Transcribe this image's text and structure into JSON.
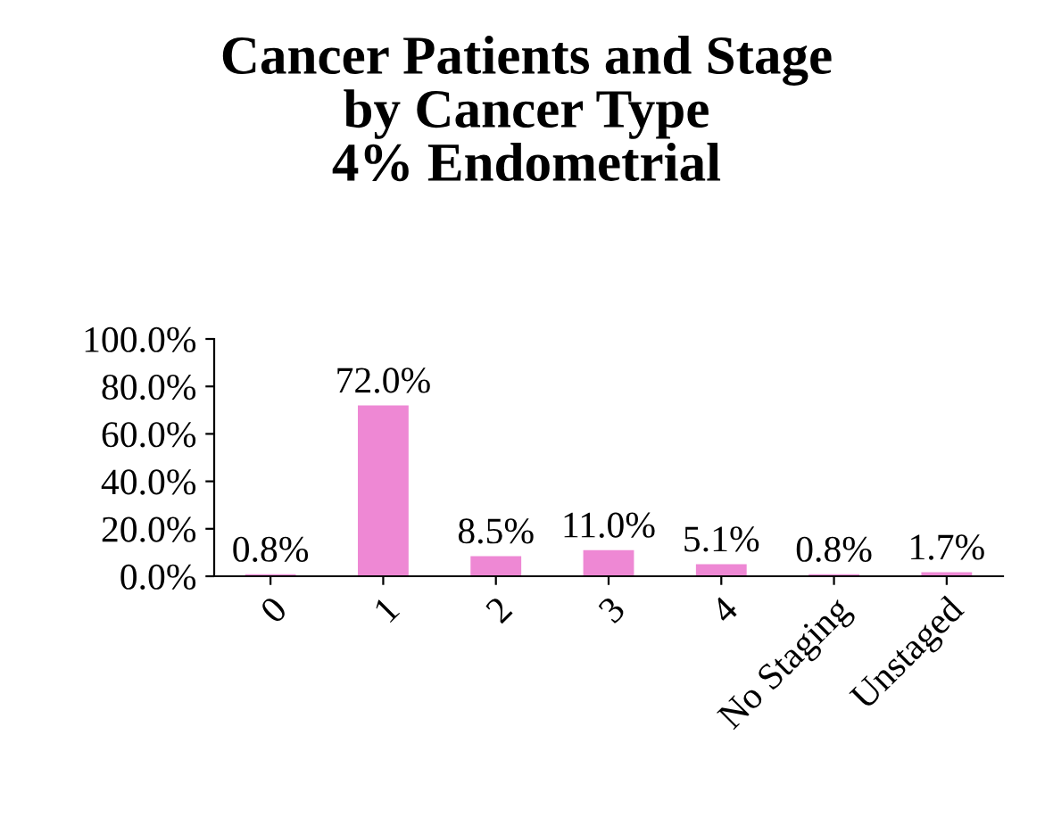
{
  "chart_data": {
    "type": "bar",
    "title": "Cancer Patients and Stage\nby Cancer Type\n4% Endometrial",
    "categories": [
      "0",
      "1",
      "2",
      "3",
      "4",
      "No Staging",
      "Unstaged"
    ],
    "values": [
      0.8,
      72.0,
      8.5,
      11.0,
      5.1,
      0.8,
      1.7
    ],
    "value_labels": [
      "0.8%",
      "72.0%",
      "8.5%",
      "11.0%",
      "5.1%",
      "0.8%",
      "1.7%"
    ],
    "color": "#ee88d4",
    "ylim": [
      0,
      100
    ],
    "yticks": [
      {
        "value": 0,
        "label": "0.0%"
      },
      {
        "value": 20,
        "label": "20.0%"
      },
      {
        "value": 40,
        "label": "40.0%"
      },
      {
        "value": 60,
        "label": "60.0%"
      },
      {
        "value": 80,
        "label": "80.0%"
      },
      {
        "value": 100,
        "label": "100.0%"
      }
    ],
    "grid": false,
    "legend": false
  }
}
